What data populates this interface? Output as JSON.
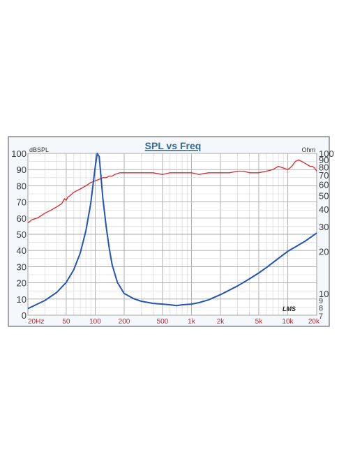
{
  "chart_data": {
    "type": "line",
    "title": "SPL vs Freq",
    "left_axis": {
      "unit": "dBSPL",
      "range": [
        0,
        100
      ],
      "ticks": [
        "0",
        "10",
        "20",
        "30",
        "40",
        "50",
        "60",
        "70",
        "80",
        "90",
        "100"
      ],
      "tick_values": [
        0,
        10,
        20,
        30,
        40,
        50,
        60,
        70,
        80,
        90,
        100
      ]
    },
    "right_axis": {
      "unit": "Ohm",
      "scale": "log",
      "range": [
        7,
        100
      ],
      "ticks": [
        "100",
        "90",
        "80",
        "70",
        "60",
        "50",
        "40",
        "30",
        "20",
        "10",
        "9",
        "8",
        "7"
      ],
      "tick_values": [
        100,
        90,
        80,
        70,
        60,
        50,
        40,
        30,
        20,
        10,
        9,
        8,
        7
      ]
    },
    "x_axis": {
      "scale": "log",
      "range": [
        20,
        20000
      ],
      "ticks": [
        "20Hz",
        "50",
        "100",
        "200",
        "500",
        "1k",
        "2k",
        "5k",
        "10k",
        "20k"
      ],
      "tick_values": [
        20,
        50,
        100,
        200,
        500,
        1000,
        2000,
        5000,
        10000,
        20000
      ]
    },
    "grid": true,
    "watermark": "LMS",
    "series": [
      {
        "name": "",
        "axis": "left",
        "color": "#d9262b",
        "x": [
          20,
          22,
          25,
          30,
          35,
          40,
          45,
          48,
          50,
          52,
          55,
          60,
          70,
          80,
          90,
          100,
          110,
          120,
          130,
          140,
          150,
          160,
          180,
          200,
          250,
          300,
          400,
          500,
          600,
          700,
          800,
          1000,
          1200,
          1500,
          2000,
          2500,
          3000,
          3500,
          4000,
          5000,
          6000,
          7000,
          8000,
          9000,
          10000,
          11000,
          12000,
          13000,
          14000,
          15000,
          16000,
          17000,
          18000,
          19000,
          20000
        ],
        "values": [
          57,
          59,
          60,
          63,
          65,
          67,
          69,
          72,
          71,
          73,
          74,
          76,
          78,
          80,
          82,
          83,
          84,
          85,
          85,
          86,
          86,
          87,
          88,
          88,
          88,
          88,
          88,
          87,
          88,
          88,
          88,
          88,
          87,
          88,
          88,
          88,
          89,
          89,
          88,
          88,
          89,
          90,
          92,
          91,
          90,
          92,
          95,
          96,
          95,
          94,
          93,
          92,
          92,
          91,
          89
        ]
      },
      {
        "name": "",
        "axis": "right",
        "color": "#2453b8",
        "x": [
          20,
          25,
          30,
          40,
          50,
          60,
          70,
          80,
          90,
          95,
          100,
          105,
          110,
          115,
          120,
          130,
          140,
          150,
          170,
          200,
          250,
          300,
          400,
          500,
          600,
          700,
          800,
          1000,
          1200,
          1500,
          2000,
          3000,
          4000,
          5000,
          6000,
          7000,
          8000,
          10000,
          12000,
          15000,
          20000
        ],
        "values": [
          7.8,
          8.4,
          8.9,
          10.2,
          12.0,
          14.8,
          19.5,
          28,
          44,
          60,
          80,
          100,
          95,
          68,
          48,
          30,
          21,
          16,
          12,
          10,
          9.2,
          8.8,
          8.5,
          8.4,
          8.3,
          8.2,
          8.3,
          8.4,
          8.6,
          9.0,
          9.8,
          11.3,
          12.7,
          14,
          15.3,
          16.6,
          17.8,
          20,
          21.5,
          23.5,
          27
        ]
      }
    ]
  }
}
